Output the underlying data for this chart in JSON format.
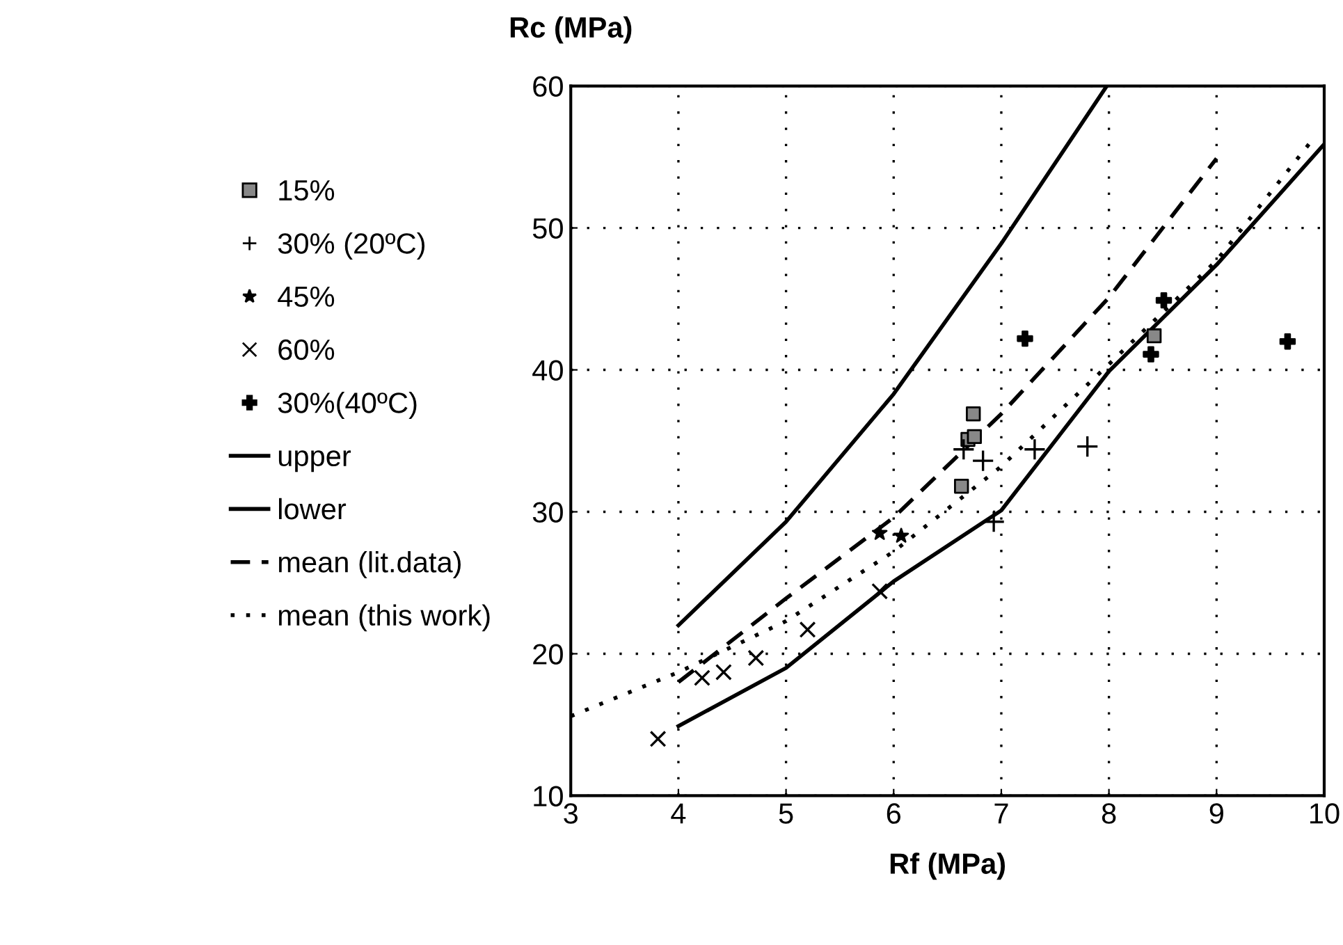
{
  "chart_data": {
    "type": "scatter",
    "xlabel": "Rf (MPa)",
    "ylabel": "Rc (MPa)",
    "xlim": [
      3,
      10
    ],
    "ylim": [
      10,
      60
    ],
    "xticks": [
      3,
      4,
      5,
      6,
      7,
      8,
      9,
      10
    ],
    "yticks": [
      10,
      20,
      30,
      40,
      50,
      60
    ],
    "grid": true,
    "legend": "left",
    "series": [
      {
        "name": "15%",
        "marker": "square",
        "color": "#000000",
        "x": [
          6.74,
          6.69,
          6.75,
          6.63,
          8.42
        ],
        "values": [
          36.9,
          35.1,
          35.3,
          31.8,
          42.4
        ]
      },
      {
        "name": "30% (20ºC)",
        "marker": "plus",
        "color": "#000000",
        "x": [
          6.65,
          6.83,
          7.31,
          7.8,
          6.93
        ],
        "values": [
          34.4,
          33.6,
          34.4,
          34.6,
          29.3
        ]
      },
      {
        "name": "45%",
        "marker": "star",
        "color": "#000000",
        "x": [
          5.87,
          6.07
        ],
        "values": [
          28.5,
          28.3
        ]
      },
      {
        "name": "60%",
        "marker": "x",
        "color": "#000000",
        "x": [
          3.81,
          4.22,
          4.42,
          4.72,
          5.2,
          5.87
        ],
        "values": [
          14.0,
          18.3,
          18.7,
          19.7,
          21.7,
          24.4
        ]
      },
      {
        "name": "30%(40ºC)",
        "marker": "cross",
        "color": "#000000",
        "x": [
          7.22,
          8.39,
          8.51,
          9.66
        ],
        "values": [
          42.2,
          41.1,
          44.9,
          42.0
        ]
      },
      {
        "name": "upper",
        "type": "line",
        "line_style": "solid",
        "color": "#000000",
        "x": [
          4,
          5,
          6,
          7,
          7.98
        ],
        "values": [
          22.0,
          29.3,
          38.3,
          48.9,
          60.0
        ]
      },
      {
        "name": "lower",
        "type": "line",
        "line_style": "solid",
        "color": "#000000",
        "x": [
          4,
          5,
          6,
          7,
          8,
          9,
          10
        ],
        "values": [
          14.9,
          19.0,
          25.1,
          30.1,
          39.9,
          47.4,
          55.9
        ]
      },
      {
        "name": "mean (lit.data)",
        "type": "line",
        "line_style": "dashed",
        "color": "#000000",
        "x": [
          4,
          5,
          6,
          7,
          8,
          9
        ],
        "values": [
          18.0,
          23.9,
          29.6,
          36.9,
          45.1,
          54.9
        ]
      },
      {
        "name": "mean (this work)",
        "type": "line",
        "line_style": "dotted",
        "color": "#000000",
        "x": [
          3,
          4,
          5,
          6,
          7,
          8,
          9,
          9.9
        ],
        "values": [
          15.6,
          18.7,
          22.3,
          27.2,
          33.2,
          40.4,
          47.7,
          56.3
        ]
      }
    ]
  }
}
